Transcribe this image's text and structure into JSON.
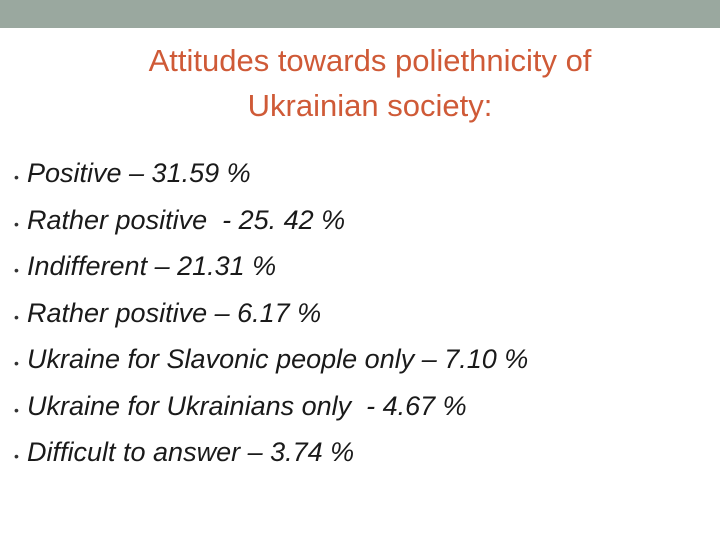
{
  "slide": {
    "title_line1": "Attitudes towards poliethnicity of",
    "title_line2": "Ukrainian society:",
    "bullet_symbol": "•",
    "bullets": [
      {
        "text": "Positive – 31.59 %"
      },
      {
        "text": "Rather positive  - 25. 42 %"
      },
      {
        "text": "Indifferent – 21.31 %"
      },
      {
        "text": "Rather positive – 6.17 %"
      },
      {
        "text": "Ukraine for Slavonic people only – 7.10 %"
      },
      {
        "text": "Ukraine for Ukrainians only  - 4.67 %"
      },
      {
        "text": "Difficult to answer – 3.74 %"
      }
    ]
  },
  "colors": {
    "top_bar": "#9aa89f",
    "title": "#cf5a37",
    "body_text": "#1a1a1a"
  }
}
